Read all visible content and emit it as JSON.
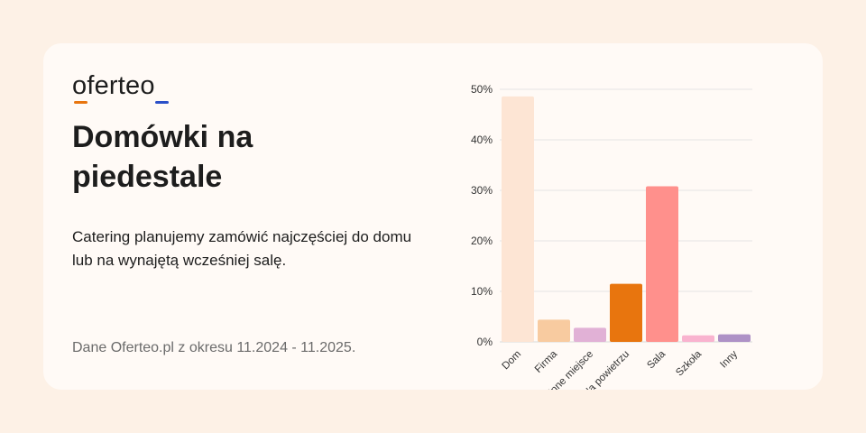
{
  "brand": {
    "name": "oferteo",
    "colors": {
      "accent_orange": "#e8750e",
      "accent_blue": "#2b50c8"
    }
  },
  "headline": "Domówki na piedestale",
  "subtitle": "Catering planujemy zamówić najczęściej do domu lub na wynajętą wcześniej salę.",
  "source": "Dane Oferteo.pl z okresu 11.2024 - 11.2025.",
  "chart_data": {
    "type": "bar",
    "categories": [
      "Dom",
      "Firma",
      "Inne miejsce",
      "Na powietrzu",
      "Sala",
      "Szkoła",
      "Inny"
    ],
    "values": [
      48.6,
      4.4,
      2.8,
      11.5,
      30.8,
      1.3,
      1.5
    ],
    "colors": [
      "#fde5d4",
      "#f8cba0",
      "#e1b1d6",
      "#e8750e",
      "#ff908c",
      "#f9b3cf",
      "#ae91c6"
    ],
    "title": "",
    "xlabel": "",
    "ylabel": "",
    "ylim": [
      0,
      50
    ],
    "yticks": [
      0,
      10,
      20,
      30,
      40,
      50
    ],
    "ytick_labels": [
      "0%",
      "10%",
      "20%",
      "30%",
      "40%",
      "50%"
    ],
    "grid": true,
    "legend": "none"
  }
}
